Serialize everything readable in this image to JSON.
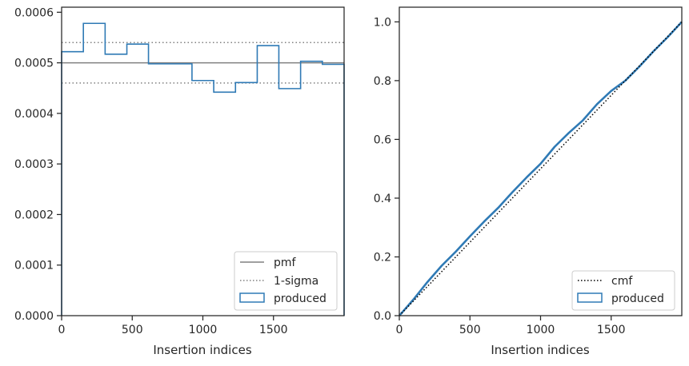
{
  "colors": {
    "produced": "#2f7ab5",
    "pmf": "#808080",
    "sigma": "#808080",
    "cmf": "#000000",
    "axis": "#262626"
  },
  "chart_data": [
    {
      "type": "line",
      "xlabel": "Insertion indices",
      "xlim": [
        0,
        2000
      ],
      "ylim": [
        0,
        0.00061
      ],
      "xticks": [
        0,
        500,
        1000,
        1500
      ],
      "xtick_labels": [
        "0",
        "500",
        "1000",
        "1500"
      ],
      "yticks": [
        0,
        0.0001,
        0.0002,
        0.0003,
        0.0004,
        0.0005,
        0.0006
      ],
      "ytick_labels": [
        "0.0000",
        "0.0001",
        "0.0002",
        "0.0003",
        "0.0004",
        "0.0005",
        "0.0006"
      ],
      "pmf": 0.0005,
      "sigma": [
        0.00046,
        0.00054
      ],
      "bin_edges": [
        0,
        154,
        308,
        462,
        615,
        769,
        923,
        1077,
        1231,
        1385,
        1538,
        1692,
        1846,
        2000
      ],
      "bin_values": [
        0.000522,
        0.000578,
        0.000517,
        0.000537,
        0.000498,
        0.000498,
        0.000465,
        0.000442,
        0.000461,
        0.000534,
        0.000449,
        0.000503,
        0.000497
      ],
      "legend": {
        "position": "lower right",
        "entries": [
          {
            "label": "pmf",
            "style": "solid"
          },
          {
            "label": "1-sigma",
            "style": "dotted"
          },
          {
            "label": "produced",
            "style": "patch"
          }
        ]
      }
    },
    {
      "type": "line",
      "xlabel": "Insertion indices",
      "xlim": [
        0,
        2000
      ],
      "ylim": [
        0,
        1.05
      ],
      "xticks": [
        0,
        500,
        1000,
        1500
      ],
      "xtick_labels": [
        "0",
        "500",
        "1000",
        "1500"
      ],
      "yticks": [
        0,
        0.2,
        0.4,
        0.6,
        0.8,
        1.0
      ],
      "ytick_labels": [
        "0.0",
        "0.2",
        "0.4",
        "0.6",
        "0.8",
        "1.0"
      ],
      "cmf": {
        "x": [
          0,
          2000
        ],
        "y": [
          0,
          1.0
        ]
      },
      "produced": {
        "x": [
          0,
          100,
          200,
          300,
          400,
          500,
          600,
          700,
          800,
          900,
          1000,
          1100,
          1200,
          1300,
          1400,
          1500,
          1600,
          1700,
          1800,
          1900,
          2000
        ],
        "y": [
          0,
          0.055,
          0.115,
          0.17,
          0.218,
          0.27,
          0.32,
          0.367,
          0.42,
          0.47,
          0.517,
          0.575,
          0.622,
          0.665,
          0.72,
          0.765,
          0.8,
          0.848,
          0.9,
          0.948,
          1.0
        ]
      },
      "legend": {
        "position": "lower right",
        "entries": [
          {
            "label": "cmf",
            "style": "dotted"
          },
          {
            "label": "produced",
            "style": "patch"
          }
        ]
      }
    }
  ]
}
